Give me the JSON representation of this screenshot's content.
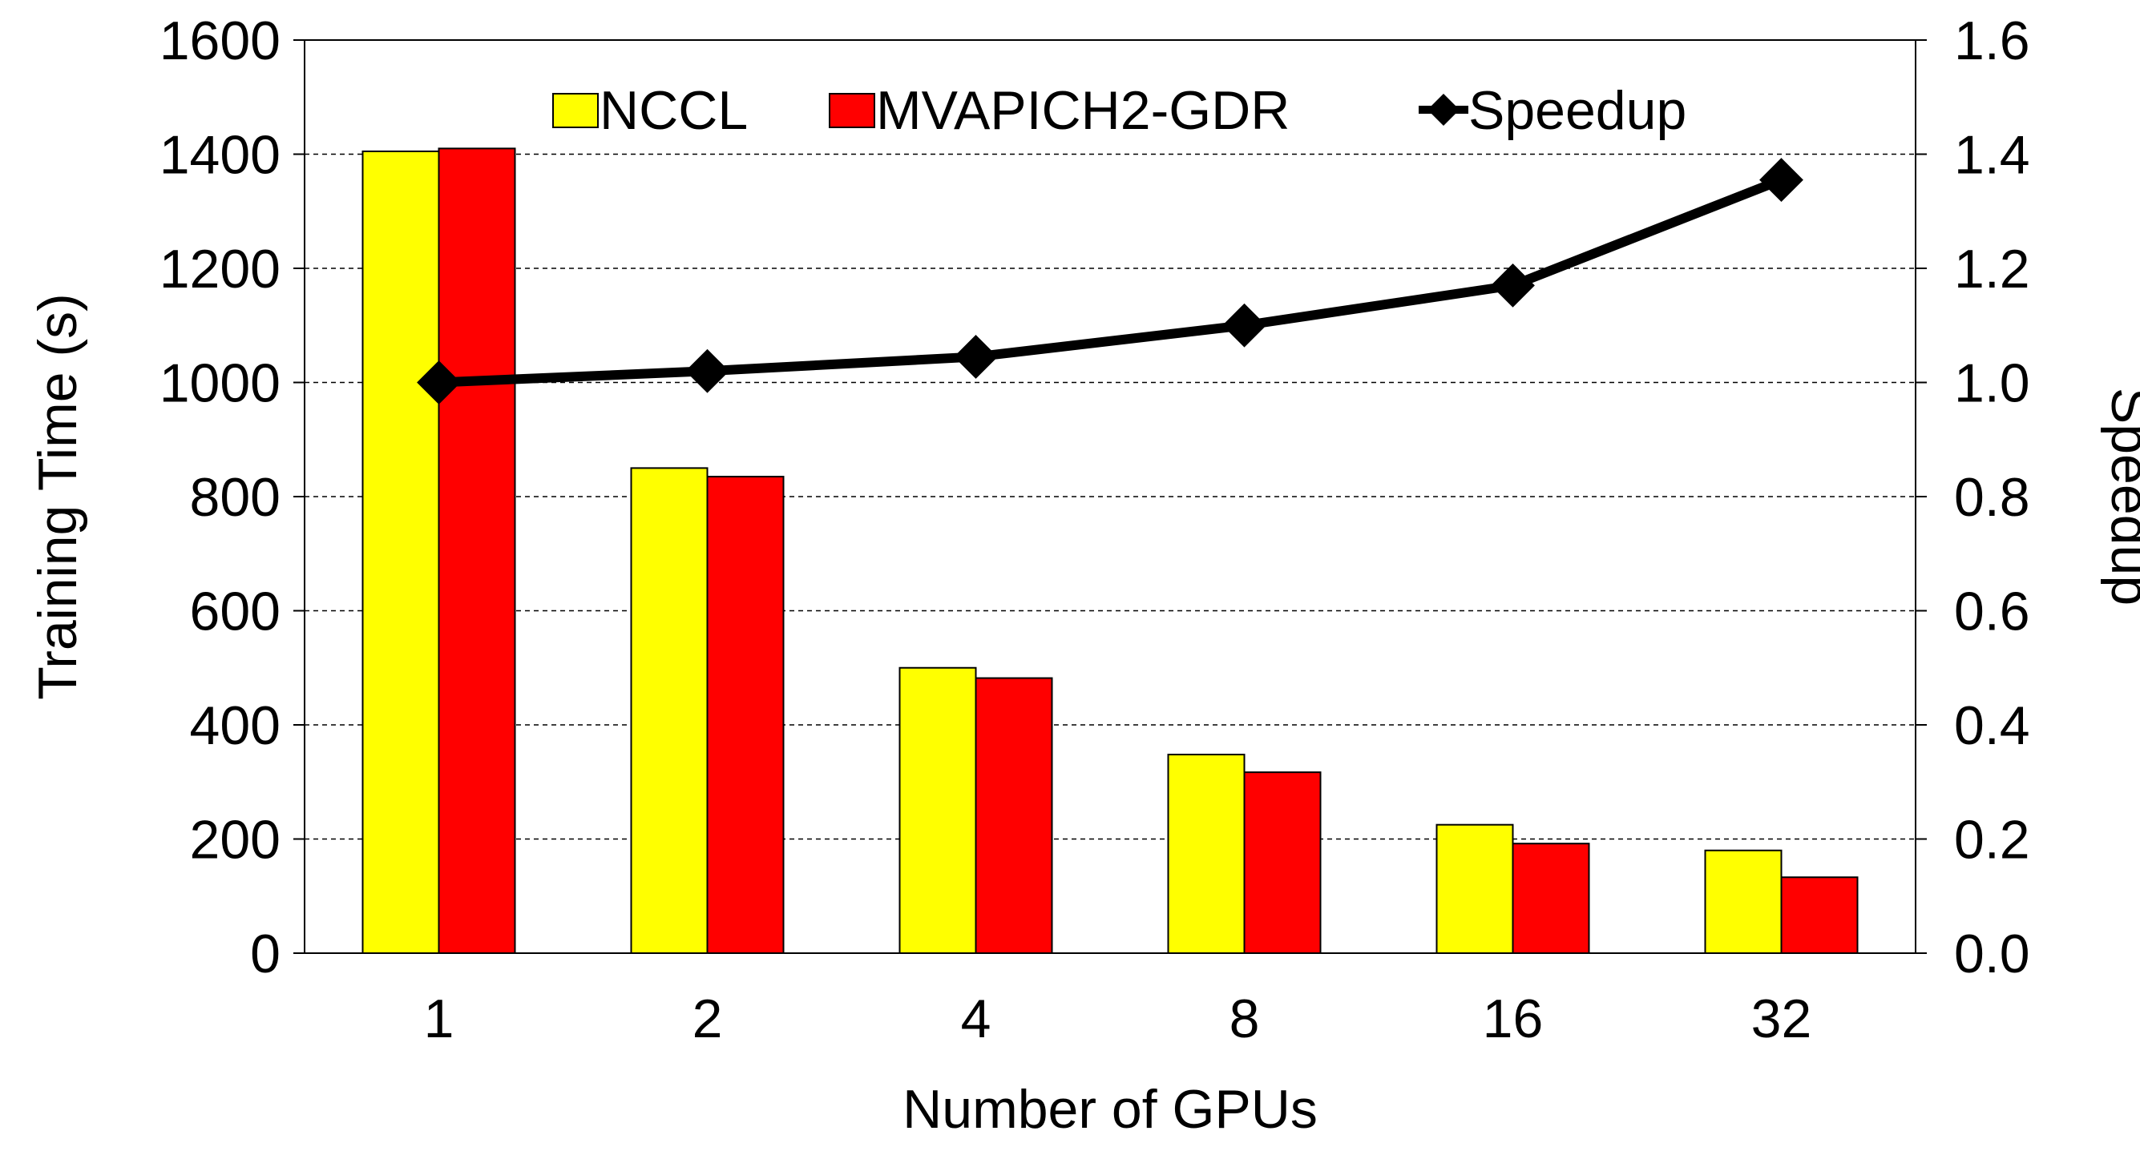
{
  "chart_data": {
    "type": "bar",
    "categories": [
      "1",
      "2",
      "4",
      "8",
      "16",
      "32"
    ],
    "series": [
      {
        "name": "NCCL",
        "type": "bar",
        "axis": "left",
        "color": "#FFFF00",
        "values": [
          1405,
          850,
          500,
          348,
          225,
          180
        ]
      },
      {
        "name": "MVAPICH2-GDR",
        "type": "bar",
        "axis": "left",
        "color": "#FF0000",
        "values": [
          1410,
          835,
          482,
          317,
          192,
          133
        ]
      },
      {
        "name": "Speedup",
        "type": "line",
        "axis": "right",
        "color": "#000000",
        "marker": "diamond",
        "values": [
          1.0,
          1.02,
          1.045,
          1.1,
          1.17,
          1.355
        ]
      }
    ],
    "xlabel": "Number of GPUs",
    "ylabel": "Training Time (s)",
    "y2label": "Speedup",
    "ylim": [
      0,
      1600
    ],
    "y2lim": [
      0,
      1.6
    ],
    "yticks": [
      "0",
      "200",
      "400",
      "600",
      "800",
      "1000",
      "1200",
      "1400",
      "1600"
    ],
    "y2ticks": [
      "0.0",
      "0.2",
      "0.4",
      "0.6",
      "0.8",
      "1.0",
      "1.2",
      "1.4",
      "1.6"
    ],
    "grid": "horizontal-dashed",
    "legend": "top-center"
  }
}
